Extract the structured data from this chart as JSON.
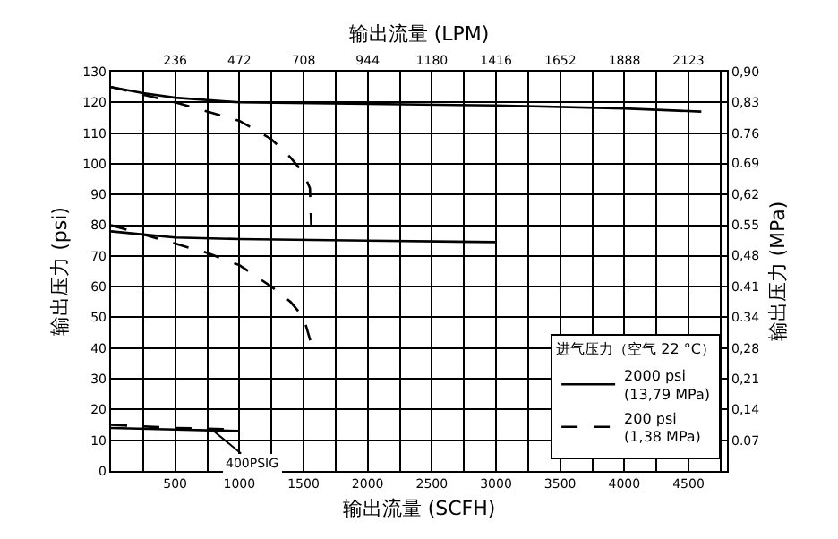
{
  "chart_data": {
    "type": "line",
    "xlabel": "输出流量 (SCFH)",
    "x2label": "输出流量 (LPM)",
    "ylabel": "输出压力 (psi)",
    "y2label": "输出压力 (MPa)",
    "legend_title": "进气压力（空气 22 °C）",
    "series": [
      {
        "name": "2000 psi\n(13,79 MPa)",
        "color": "#000000",
        "line_style": "solid",
        "x": [
          0,
          250,
          500,
          1000,
          2000,
          3000,
          4000,
          4600
        ],
        "values": [
          125,
          123,
          121.5,
          120,
          119.5,
          119,
          118,
          117
        ]
      },
      {
        "color": "#000000",
        "line_style": "solid",
        "x": [
          0,
          250,
          500,
          1000,
          2000,
          3000
        ],
        "values": [
          78,
          77,
          76,
          75.5,
          75,
          74.5
        ]
      },
      {
        "color": "#000000",
        "line_style": "solid",
        "x": [
          0,
          500,
          1000
        ],
        "values": [
          14,
          13.5,
          13
        ]
      },
      {
        "name": "200 psi\n(1,38 MPa)",
        "color": "#000000",
        "line_style": "dashed",
        "x": [
          0,
          250,
          500,
          750,
          1000,
          1250,
          1400,
          1500,
          1550,
          1560
        ],
        "values": [
          125,
          122.5,
          120,
          117,
          114,
          108,
          102,
          97,
          92,
          80
        ]
      },
      {
        "color": "#000000",
        "line_style": "dashed",
        "x": [
          0,
          250,
          500,
          750,
          1000,
          1250,
          1400,
          1500,
          1570
        ],
        "values": [
          80,
          77,
          74,
          71,
          67,
          60,
          55,
          50,
          40
        ]
      },
      {
        "color": "#000000",
        "line_style": "dashed",
        "x": [
          0,
          500,
          1000
        ],
        "values": [
          15,
          14,
          13.5
        ]
      }
    ],
    "annotations": [
      {
        "text": "400PSIG",
        "x": 800,
        "y": 13
      }
    ],
    "xlim": [
      0,
      4800
    ],
    "xticks": [
      500,
      1000,
      1500,
      2000,
      2500,
      3000,
      3500,
      4000,
      4500
    ],
    "x2lim": [
      0,
      2265
    ],
    "x2ticks": [
      236,
      472,
      708,
      944,
      1180,
      1416,
      1652,
      1888,
      2123
    ],
    "ylim": [
      0,
      130
    ],
    "yticks": [
      0,
      10,
      20,
      30,
      40,
      50,
      60,
      70,
      80,
      90,
      100,
      110,
      120,
      130
    ],
    "y2lim": [
      0,
      0.896
    ],
    "y2ticks": [
      {
        "value": 0.069,
        "label": "0.07"
      },
      {
        "value": 0.138,
        "label": "0,14"
      },
      {
        "value": 0.207,
        "label": "0,21"
      },
      {
        "value": 0.276,
        "label": "0,28"
      },
      {
        "value": 0.345,
        "label": "0.34"
      },
      {
        "value": 0.414,
        "label": "0.41"
      },
      {
        "value": 0.483,
        "label": "0,48"
      },
      {
        "value": 0.552,
        "label": "0.55"
      },
      {
        "value": 0.621,
        "label": "0,62"
      },
      {
        "value": 0.69,
        "label": "0.69"
      },
      {
        "value": 0.758,
        "label": "0.76"
      },
      {
        "value": 0.827,
        "label": "0,83"
      },
      {
        "value": 0.896,
        "label": "0,90"
      }
    ],
    "grid": true,
    "legend": "bottom right"
  }
}
